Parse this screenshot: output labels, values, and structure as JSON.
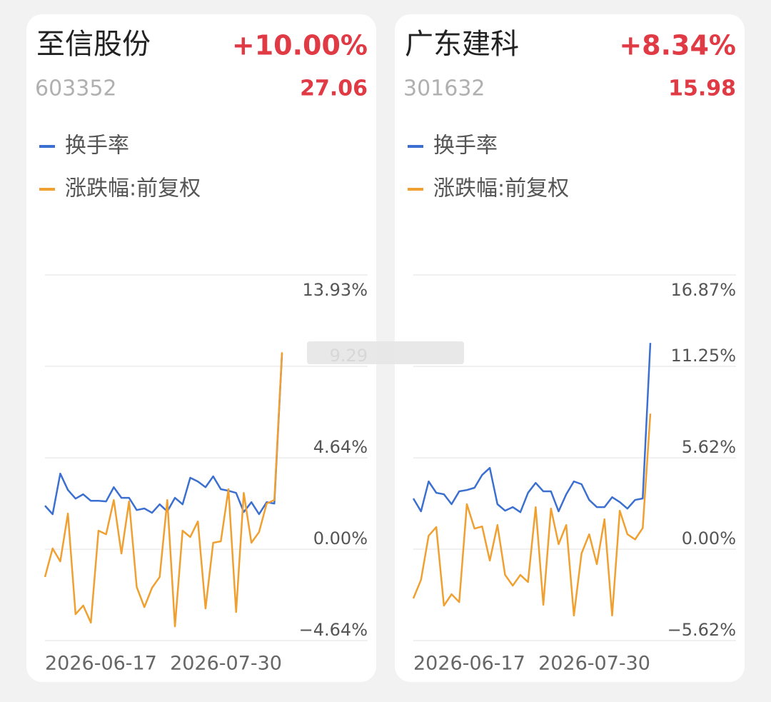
{
  "chart_data": [
    {
      "type": "line",
      "title": "至信股份",
      "code": "603352",
      "change": "+10.00%",
      "price": "27.06",
      "categories": [
        "2026-06-17",
        null,
        null,
        null,
        null,
        null,
        null,
        null,
        null,
        null,
        null,
        null,
        null,
        null,
        null,
        null,
        null,
        null,
        null,
        null,
        null,
        null,
        null,
        null,
        null,
        null,
        null,
        null,
        null,
        null,
        null,
        "2026-07-30"
      ],
      "series": [
        {
          "name": "换手率",
          "color": "#3b6fd0",
          "values": [
            2.21,
            1.78,
            3.84,
            3.01,
            2.57,
            2.79,
            2.46,
            2.46,
            2.43,
            3.15,
            2.61,
            2.61,
            1.99,
            2.07,
            1.85,
            2.28,
            1.92,
            2.61,
            2.28,
            3.63,
            3.44,
            3.15,
            3.7,
            3.05,
            2.97,
            2.86,
            1.89,
            2.39,
            1.78,
            2.39,
            2.32,
            9.93
          ]
        },
        {
          "name": "涨跌幅:前复权",
          "color": "#f0a030",
          "values": [
            -1.41,
            0.04,
            -0.62,
            1.81,
            -3.3,
            -2.86,
            -3.73,
            0.94,
            0.76,
            2.5,
            -0.22,
            2.43,
            -1.92,
            -2.94,
            -1.96,
            -1.41,
            2.5,
            -3.92,
            0.94,
            0.62,
            1.41,
            -3.01,
            0.33,
            0.4,
            3.05,
            -3.19,
            2.86,
            0.33,
            0.87,
            2.32,
            2.5,
            10.0
          ]
        }
      ],
      "ylim": [
        -4.64,
        13.93
      ],
      "yticks": [
        {
          "value": -4.64,
          "label": "−4.64%"
        },
        {
          "value": 0,
          "label": "0.00%"
        },
        {
          "value": 4.64,
          "label": "4.64%"
        },
        9.29,
        {
          "value": 13.93,
          "label": "13.93%"
        }
      ],
      "grid": true
    },
    {
      "type": "line",
      "title": "广东建科",
      "code": "301632",
      "change": "+8.34%",
      "price": "15.98",
      "categories": [
        "2026-06-17",
        null,
        null,
        null,
        null,
        null,
        null,
        null,
        null,
        null,
        null,
        null,
        null,
        null,
        null,
        null,
        null,
        null,
        null,
        null,
        null,
        null,
        null,
        null,
        null,
        null,
        null,
        null,
        null,
        null,
        null,
        "2026-07-30"
      ],
      "series": [
        {
          "name": "换手率",
          "color": "#3b6fd0",
          "values": [
            3.12,
            2.33,
            4.17,
            3.47,
            3.38,
            2.77,
            3.56,
            3.64,
            3.78,
            4.57,
            5.0,
            2.77,
            2.37,
            2.59,
            2.28,
            3.47,
            4.08,
            3.56,
            3.56,
            2.33,
            3.38,
            4.17,
            4.0,
            3.03,
            2.59,
            2.59,
            3.2,
            2.9,
            2.5,
            3.03,
            3.12,
            12.69
          ]
        },
        {
          "name": "涨跌幅:前复权",
          "color": "#f0a030",
          "values": [
            -3.03,
            -1.89,
            0.83,
            1.36,
            -3.47,
            -2.77,
            -3.25,
            2.77,
            1.27,
            1.4,
            -0.7,
            1.49,
            -1.58,
            -2.24,
            -1.58,
            -2.02,
            2.59,
            -3.42,
            2.5,
            0.31,
            1.49,
            -4.08,
            -0.26,
            0.92,
            -0.92,
            1.84,
            -4.08,
            2.37,
            0.92,
            0.6,
            1.3,
            8.34
          ]
        }
      ],
      "ylim": [
        -5.62,
        16.87
      ],
      "yticks": [
        {
          "value": -5.62,
          "label": "−5.62%"
        },
        {
          "value": 0,
          "label": "0.00%"
        },
        {
          "value": 5.62,
          "label": "5.62%"
        },
        {
          "value": 11.25,
          "label": "11.25%"
        },
        {
          "value": 16.87,
          "label": "16.87%"
        }
      ],
      "grid": true
    }
  ]
}
